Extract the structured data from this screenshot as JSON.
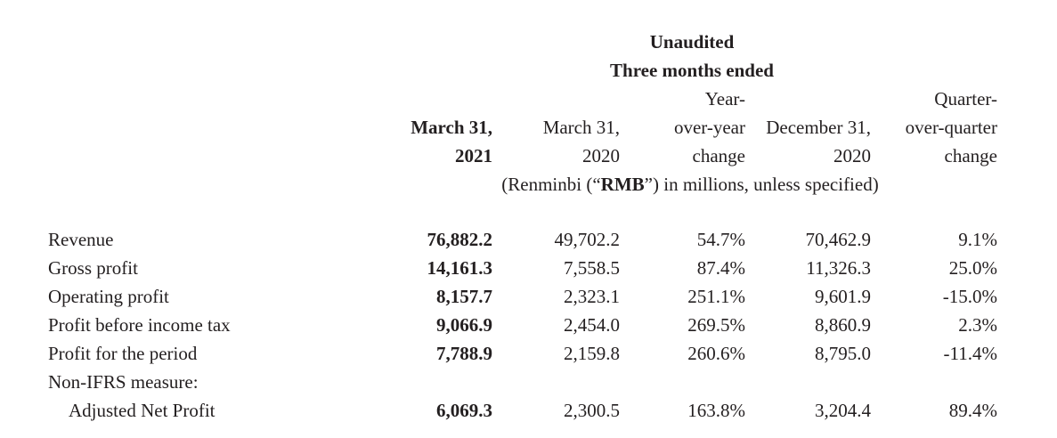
{
  "header": {
    "line1": "Unaudited",
    "line2": "Three months ended",
    "columns": [
      {
        "lines": [
          "March 31,",
          "2021"
        ]
      },
      {
        "lines": [
          "March 31,",
          "2020"
        ]
      },
      {
        "lines": [
          "Year-",
          "over-year",
          "change"
        ]
      },
      {
        "lines": [
          "December 31,",
          "2020"
        ]
      },
      {
        "lines": [
          "Quarter-",
          "over-quarter",
          "change"
        ]
      }
    ],
    "units": {
      "prefix": "(Renminbi (“",
      "bold": "RMB",
      "suffix": "”) in millions, unless specified)"
    }
  },
  "table": {
    "rows": [
      {
        "label": "Revenue",
        "values": [
          "76,882.2",
          "49,702.2",
          "54.7%",
          "70,462.9",
          "9.1%"
        ]
      },
      {
        "label": "Gross profit",
        "values": [
          "14,161.3",
          "7,558.5",
          "87.4%",
          "11,326.3",
          "25.0%"
        ]
      },
      {
        "label": "Operating profit",
        "values": [
          "8,157.7",
          "2,323.1",
          "251.1%",
          "9,601.9",
          "-15.0%"
        ]
      },
      {
        "label": "Profit before income tax",
        "values": [
          "9,066.9",
          "2,454.0",
          "269.5%",
          "8,860.9",
          "2.3%"
        ]
      },
      {
        "label": "Profit for the period",
        "values": [
          "7,788.9",
          "2,159.8",
          "260.6%",
          "8,795.0",
          "-11.4%"
        ]
      },
      {
        "label": "Non-IFRS measure:",
        "values": [
          "",
          "",
          "",
          "",
          ""
        ]
      },
      {
        "label": "Adjusted Net Profit",
        "values": [
          "6,069.3",
          "2,300.5",
          "163.8%",
          "3,204.4",
          "89.4%"
        ]
      }
    ]
  }
}
